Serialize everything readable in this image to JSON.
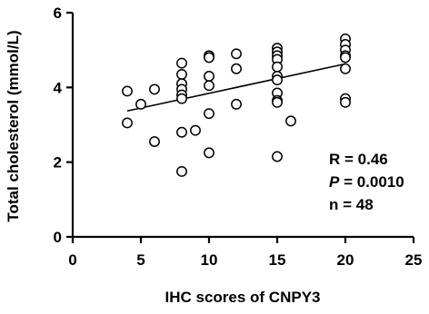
{
  "chart_data": {
    "type": "scatter",
    "xlabel": "IHC scores of CNPY3",
    "ylabel": "Total cholesterol (mmol/L)",
    "xlim": [
      0,
      25
    ],
    "ylim": [
      0,
      6
    ],
    "x_ticks": [
      "0",
      "5",
      "10",
      "15",
      "20",
      "25"
    ],
    "y_ticks": [
      "0",
      "2",
      "4",
      "6"
    ],
    "grid": false,
    "points": [
      {
        "x": 4,
        "y": 3.9
      },
      {
        "x": 4,
        "y": 3.05
      },
      {
        "x": 5,
        "y": 3.55
      },
      {
        "x": 6,
        "y": 3.95
      },
      {
        "x": 6,
        "y": 2.55
      },
      {
        "x": 8,
        "y": 4.65
      },
      {
        "x": 8,
        "y": 4.35
      },
      {
        "x": 8,
        "y": 4.1
      },
      {
        "x": 8,
        "y": 3.95
      },
      {
        "x": 8,
        "y": 3.8
      },
      {
        "x": 8,
        "y": 3.7
      },
      {
        "x": 8,
        "y": 2.8
      },
      {
        "x": 8,
        "y": 1.75
      },
      {
        "x": 9,
        "y": 2.85
      },
      {
        "x": 10,
        "y": 4.85
      },
      {
        "x": 10,
        "y": 4.8
      },
      {
        "x": 10,
        "y": 4.3
      },
      {
        "x": 10,
        "y": 4.05
      },
      {
        "x": 10,
        "y": 3.3
      },
      {
        "x": 10,
        "y": 2.25
      },
      {
        "x": 12,
        "y": 4.9
      },
      {
        "x": 12,
        "y": 4.5
      },
      {
        "x": 12,
        "y": 3.55
      },
      {
        "x": 15,
        "y": 5.05
      },
      {
        "x": 15,
        "y": 4.95
      },
      {
        "x": 15,
        "y": 4.85
      },
      {
        "x": 15,
        "y": 4.75
      },
      {
        "x": 15,
        "y": 4.55
      },
      {
        "x": 15,
        "y": 4.3
      },
      {
        "x": 15,
        "y": 4.2
      },
      {
        "x": 15,
        "y": 3.85
      },
      {
        "x": 15,
        "y": 3.65
      },
      {
        "x": 15,
        "y": 3.6
      },
      {
        "x": 15,
        "y": 2.15
      },
      {
        "x": 16,
        "y": 3.1
      },
      {
        "x": 20,
        "y": 5.3
      },
      {
        "x": 20,
        "y": 5.15
      },
      {
        "x": 20,
        "y": 5.0
      },
      {
        "x": 20,
        "y": 4.85
      },
      {
        "x": 20,
        "y": 4.8
      },
      {
        "x": 20,
        "y": 4.5
      },
      {
        "x": 20,
        "y": 3.7
      },
      {
        "x": 20,
        "y": 3.6
      }
    ],
    "fit_line": {
      "x": [
        4,
        20
      ],
      "y": [
        3.37,
        4.63
      ]
    },
    "annotations": {
      "r": "R = 0.46",
      "p_symbol": "P",
      "p_value": " = 0.0010",
      "n": "n = 48"
    }
  }
}
